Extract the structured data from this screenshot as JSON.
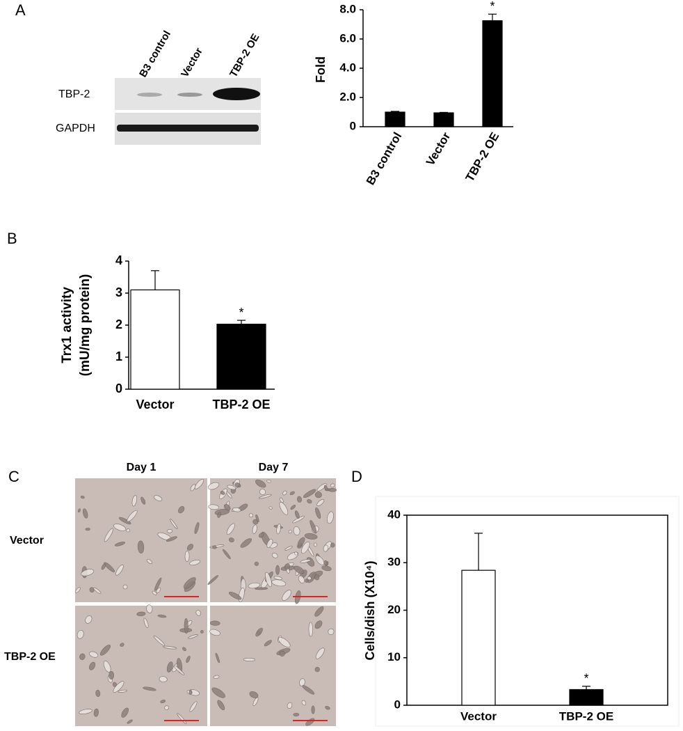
{
  "panel_labels": [
    "A",
    "B",
    "C",
    "D"
  ],
  "blot": {
    "lanes": [
      "B3 control",
      "Vector",
      "TBP-2 OE"
    ],
    "rows": [
      "TBP-2",
      "GAPDH"
    ]
  },
  "micrographs": {
    "columns": [
      "Day 1",
      "Day 7"
    ],
    "rows": [
      "Vector",
      "TBP-2 OE"
    ]
  },
  "chart_data": [
    {
      "type": "bar",
      "ylabel": [
        "Fold"
      ],
      "categories": [
        "B3 control",
        "Vector",
        "TBP-2 OE"
      ],
      "values": [
        1.0,
        0.95,
        7.25
      ],
      "errors": [
        0.05,
        0.03,
        0.45
      ],
      "colors": [
        "#000000",
        "#000000",
        "#000000"
      ],
      "value_annotations": [
        null,
        null,
        "*"
      ],
      "ylim": [
        0,
        8
      ],
      "yticks": [
        0,
        {
          "value": 2,
          "label": "2.0"
        },
        {
          "value": 4,
          "label": "4.0"
        },
        {
          "value": 6,
          "label": "6.0"
        },
        {
          "value": 8,
          "label": "8.0"
        }
      ]
    },
    {
      "type": "bar",
      "ylabel": [
        "Trx1 activity",
        "(mU/mg protein)"
      ],
      "categories": [
        "Vector",
        "TBP-2 OE"
      ],
      "values": [
        3.1,
        2.03
      ],
      "errors": [
        0.6,
        0.12
      ],
      "colors": [
        "#ffffff",
        "#000000"
      ],
      "value_annotations": [
        null,
        "*"
      ],
      "ylim": [
        0,
        4
      ],
      "yticks": [
        0,
        1,
        2,
        3,
        4
      ]
    },
    {
      "type": "bar",
      "ylabel": [
        "Cells/dish (X10⁴)"
      ],
      "categories": [
        "Vector",
        "TBP-2 OE"
      ],
      "values": [
        28.4,
        3.3
      ],
      "errors": [
        7.8,
        0.7
      ],
      "colors": [
        "#ffffff",
        "#000000"
      ],
      "value_annotations": [
        null,
        "*"
      ],
      "ylim": [
        0,
        40
      ],
      "yticks": [
        0,
        10,
        20,
        30,
        40
      ],
      "frame": true
    }
  ]
}
